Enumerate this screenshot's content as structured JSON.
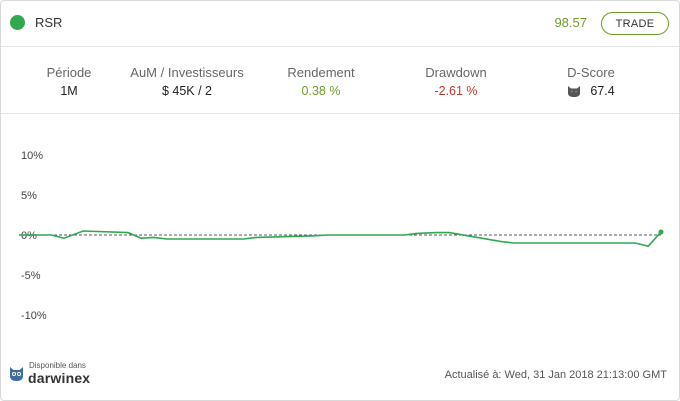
{
  "header": {
    "name": "RSR",
    "price": "98.57",
    "trade_label": "TRADE",
    "status_color": "#2fa84f"
  },
  "stats": [
    {
      "label": "Période",
      "value": "1M"
    },
    {
      "label": "AuM / Investisseurs",
      "value": "$ 45K / 2"
    },
    {
      "label": "Rendement",
      "value": "0.38 %"
    },
    {
      "label": "Drawdown",
      "value": "-2.61 %"
    },
    {
      "label": "D-Score",
      "value": "67.4",
      "icon": "owl-icon"
    }
  ],
  "colors": {
    "positive": "#6d9c2c",
    "negative": "#c0392b",
    "line": "#2fa84f"
  },
  "chart_data": {
    "type": "line",
    "yticks": [
      "10%",
      "5%",
      "0%",
      "-5%",
      "-10%"
    ],
    "ylim": [
      -10,
      10
    ],
    "x": [
      0,
      3,
      5,
      7,
      10,
      17,
      19,
      21,
      23,
      35,
      37,
      46,
      48,
      60,
      62,
      65,
      67,
      75,
      77,
      80,
      82,
      96,
      97,
      98,
      100
    ],
    "series": [
      {
        "values": [
          0,
          0,
          0,
          -0.4,
          0.5,
          0.3,
          -0.4,
          -0.3,
          -0.5,
          -0.5,
          -0.3,
          -0.1,
          0.0,
          0.0,
          0.2,
          0.3,
          0.3,
          -0.8,
          -1.0,
          -1.0,
          -1.0,
          -1.0,
          -1.2,
          -1.4,
          0.38
        ]
      }
    ],
    "baseline": 0,
    "grid": false
  },
  "footer": {
    "logo_small": "Disponible dans",
    "logo_text": "darwinex",
    "updated": "Actualisé à: Wed, 31 Jan 2018 21:13:00 GMT"
  }
}
